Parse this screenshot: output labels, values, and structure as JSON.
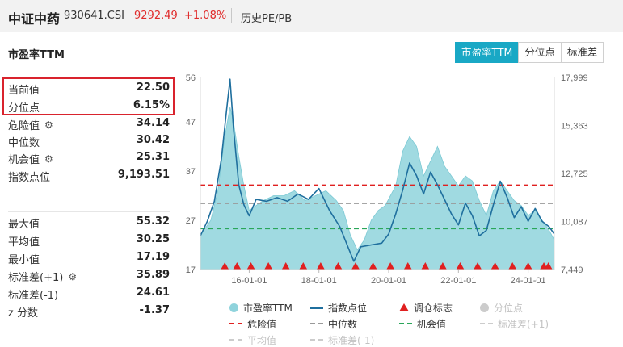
{
  "header": {
    "index_name": "中证中药",
    "code": "930641.CSI",
    "price": "9292.49",
    "change": "+1.08%",
    "history_link": "历史PE/PB"
  },
  "section_title": "市盈率TTM",
  "tabs": [
    {
      "label": "市盈率TTM",
      "active": true
    },
    {
      "label": "分位点",
      "active": false
    },
    {
      "label": "标准差",
      "active": false
    }
  ],
  "stats_top": [
    {
      "label": "当前值",
      "value": "22.50"
    },
    {
      "label": "分位点",
      "value": "6.15%"
    },
    {
      "label": "危险值",
      "value": "34.14"
    },
    {
      "label": "中位数",
      "value": "30.42"
    },
    {
      "label": "机会值",
      "value": "25.31"
    },
    {
      "label": "指数点位",
      "value": "9,193.51"
    }
  ],
  "stats_bottom": [
    {
      "label": "最大值",
      "value": "55.32"
    },
    {
      "label": "平均值",
      "value": "30.25"
    },
    {
      "label": "最小值",
      "value": "17.19"
    },
    {
      "label": "标准差(+1)",
      "value": "35.89"
    },
    {
      "label": "标准差(-1)",
      "value": "24.61"
    },
    {
      "label": "z 分数",
      "value": "-1.37"
    }
  ],
  "icons": {
    "gear": "gear-icon"
  },
  "colors": {
    "accent": "#19a8c5",
    "pe_area": "#8fd3dc",
    "index_line": "#1f6f9e",
    "danger": "#e02020",
    "median": "#999999",
    "opportunity": "#2aa65a",
    "up": "#e02b2b",
    "highlight_border": "#d9232d"
  },
  "legend": [
    {
      "label": "市盈率TTM",
      "kind": "dot",
      "color": "#8fd3dc",
      "dim": false
    },
    {
      "label": "指数点位",
      "kind": "line",
      "color": "#1f6f9e",
      "dim": false
    },
    {
      "label": "调仓标志",
      "kind": "tri",
      "color": "#e02020",
      "dim": false
    },
    {
      "label": "分位点",
      "kind": "dot",
      "color": "#cccccc",
      "dim": true
    },
    {
      "label": "危险值",
      "kind": "dash",
      "color": "#e02020",
      "dim": false
    },
    {
      "label": "中位数",
      "kind": "dash",
      "color": "#999999",
      "dim": false
    },
    {
      "label": "机会值",
      "kind": "dash",
      "color": "#2aa65a",
      "dim": false
    },
    {
      "label": "标准差(+1)",
      "kind": "dash",
      "color": "#cccccc",
      "dim": true
    },
    {
      "label": "平均值",
      "kind": "dash",
      "color": "#cccccc",
      "dim": true
    },
    {
      "label": "标准差(-1)",
      "kind": "dash",
      "color": "#cccccc",
      "dim": true
    }
  ],
  "chart_data": {
    "type": "area",
    "y_left": {
      "ticks": [
        "56",
        "47",
        "37",
        "27",
        "17"
      ],
      "range": [
        17,
        56
      ]
    },
    "y_right": {
      "ticks": [
        "17,999",
        "15,363",
        "12,725",
        "10,087",
        "7,449"
      ],
      "range": [
        7449,
        17999
      ]
    },
    "x_ticks": [
      "16-01-01",
      "18-01-01",
      "20-01-01",
      "22-01-01",
      "24-01-01"
    ],
    "x_tick_years": [
      2016,
      2018,
      2020,
      2022,
      2024
    ],
    "x_range": [
      2014.6,
      2024.75
    ],
    "reference_lines": {
      "danger": 34.14,
      "median": 30.42,
      "opportunity": 25.31
    },
    "series": [
      {
        "name": "市盈率TTM",
        "x": [
          2014.6,
          2014.9,
          2015.1,
          2015.3,
          2015.45,
          2015.55,
          2015.7,
          2015.85,
          2016.0,
          2016.2,
          2016.4,
          2016.7,
          2017.0,
          2017.3,
          2017.6,
          2017.9,
          2018.2,
          2018.5,
          2018.7,
          2018.9,
          2019.1,
          2019.3,
          2019.5,
          2019.7,
          2019.9,
          2020.05,
          2020.2,
          2020.4,
          2020.6,
          2020.8,
          2021.0,
          2021.2,
          2021.4,
          2021.6,
          2021.8,
          2022.0,
          2022.2,
          2022.4,
          2022.6,
          2022.8,
          2023.0,
          2023.2,
          2023.4,
          2023.6,
          2023.8,
          2024.0,
          2024.2,
          2024.4,
          2024.6,
          2024.75
        ],
        "values": [
          24,
          27,
          33,
          44,
          50,
          47,
          40,
          34,
          29,
          30,
          31,
          32,
          32,
          33,
          31,
          32,
          33,
          31,
          29,
          24,
          21,
          23,
          27,
          29,
          30,
          32,
          34,
          41,
          44,
          42,
          36,
          39,
          42,
          38,
          36,
          34,
          36,
          35,
          31,
          28,
          33,
          35,
          33,
          31,
          30,
          28,
          29,
          27,
          25,
          23
        ]
      },
      {
        "name": "指数点位",
        "x": [
          2014.6,
          2014.8,
          2015.0,
          2015.2,
          2015.35,
          2015.45,
          2015.55,
          2015.7,
          2015.85,
          2016.0,
          2016.2,
          2016.5,
          2016.8,
          2017.1,
          2017.4,
          2017.7,
          2018.0,
          2018.3,
          2018.6,
          2018.85,
          2019.0,
          2019.2,
          2019.5,
          2019.8,
          2020.0,
          2020.2,
          2020.4,
          2020.6,
          2020.8,
          2021.0,
          2021.2,
          2021.4,
          2021.6,
          2021.8,
          2022.0,
          2022.2,
          2022.4,
          2022.6,
          2022.8,
          2023.0,
          2023.2,
          2023.4,
          2023.6,
          2023.8,
          2024.0,
          2024.2,
          2024.4,
          2024.6,
          2024.75
        ],
        "values": [
          9300,
          10100,
          11200,
          13500,
          16200,
          17900,
          15200,
          12100,
          11000,
          10400,
          11300,
          11200,
          11400,
          11200,
          11600,
          11300,
          11900,
          10700,
          9800,
          8600,
          7900,
          8700,
          8800,
          8900,
          9400,
          10500,
          11800,
          13300,
          12600,
          11600,
          12800,
          12100,
          11300,
          10500,
          9900,
          11100,
          10400,
          9300,
          9600,
          11000,
          12300,
          11400,
          10300,
          10900,
          10100,
          10800,
          10100,
          9800,
          9400
        ]
      }
    ],
    "rebalance_markers": [
      2015.3,
      2015.65,
      2016.05,
      2016.55,
      2017.05,
      2017.55,
      2018.05,
      2018.55,
      2019.05,
      2019.55,
      2020.05,
      2020.55,
      2021.05,
      2021.55,
      2022.05,
      2022.55,
      2023.05,
      2023.55,
      2024.0,
      2024.45,
      2024.58
    ]
  }
}
